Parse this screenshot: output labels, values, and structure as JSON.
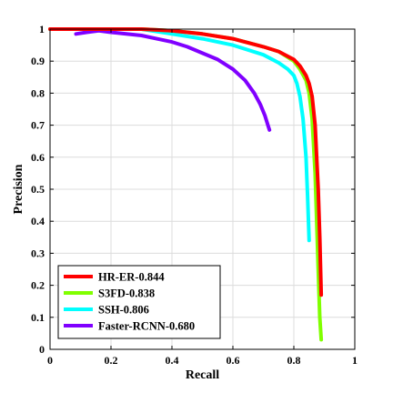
{
  "chart_data": {
    "type": "line",
    "xlabel": "Recall",
    "ylabel": "Precision",
    "xlim": [
      0,
      1
    ],
    "ylim": [
      0,
      1
    ],
    "xticks": [
      "0",
      "0.2",
      "0.4",
      "0.6",
      "0.8",
      "1"
    ],
    "yticks": [
      "0",
      "0.1",
      "0.2",
      "0.3",
      "0.4",
      "0.5",
      "0.6",
      "0.7",
      "0.8",
      "0.9",
      "1"
    ],
    "grid": true,
    "legend_position": "bottom-left",
    "series": [
      {
        "name": "HR-ER-0.844",
        "color": "#ff0000",
        "x": [
          0.0,
          0.1,
          0.2,
          0.3,
          0.4,
          0.5,
          0.6,
          0.7,
          0.75,
          0.8,
          0.82,
          0.84,
          0.85,
          0.86,
          0.87,
          0.88,
          0.885,
          0.89
        ],
        "y": [
          1.0,
          1.0,
          1.0,
          1.0,
          0.995,
          0.985,
          0.97,
          0.945,
          0.93,
          0.905,
          0.885,
          0.855,
          0.83,
          0.79,
          0.7,
          0.5,
          0.35,
          0.17
        ]
      },
      {
        "name": "S3FD-0.838",
        "color": "#80ff00",
        "x": [
          0.0,
          0.1,
          0.2,
          0.3,
          0.4,
          0.5,
          0.6,
          0.7,
          0.75,
          0.8,
          0.82,
          0.84,
          0.85,
          0.86,
          0.87,
          0.875,
          0.88,
          0.885,
          0.89
        ],
        "y": [
          1.0,
          1.0,
          1.0,
          1.0,
          0.995,
          0.985,
          0.97,
          0.945,
          0.93,
          0.9,
          0.875,
          0.84,
          0.8,
          0.72,
          0.55,
          0.4,
          0.25,
          0.1,
          0.03
        ]
      },
      {
        "name": "SSH-0.806",
        "color": "#00ffff",
        "x": [
          0.0,
          0.1,
          0.2,
          0.3,
          0.4,
          0.5,
          0.6,
          0.7,
          0.75,
          0.78,
          0.8,
          0.81,
          0.82,
          0.83,
          0.84,
          0.845,
          0.85
        ],
        "y": [
          1.0,
          1.0,
          1.0,
          1.0,
          0.985,
          0.97,
          0.95,
          0.92,
          0.895,
          0.875,
          0.855,
          0.83,
          0.79,
          0.72,
          0.6,
          0.48,
          0.34
        ]
      },
      {
        "name": "Faster-RCNN-0.680",
        "color": "#8000ff",
        "x": [
          0.085,
          0.12,
          0.16,
          0.2,
          0.25,
          0.3,
          0.35,
          0.4,
          0.45,
          0.5,
          0.55,
          0.6,
          0.64,
          0.67,
          0.69,
          0.705,
          0.715,
          0.72
        ],
        "y": [
          0.985,
          0.99,
          0.995,
          0.99,
          0.985,
          0.98,
          0.97,
          0.96,
          0.945,
          0.925,
          0.905,
          0.875,
          0.84,
          0.8,
          0.765,
          0.73,
          0.7,
          0.685
        ]
      }
    ]
  }
}
